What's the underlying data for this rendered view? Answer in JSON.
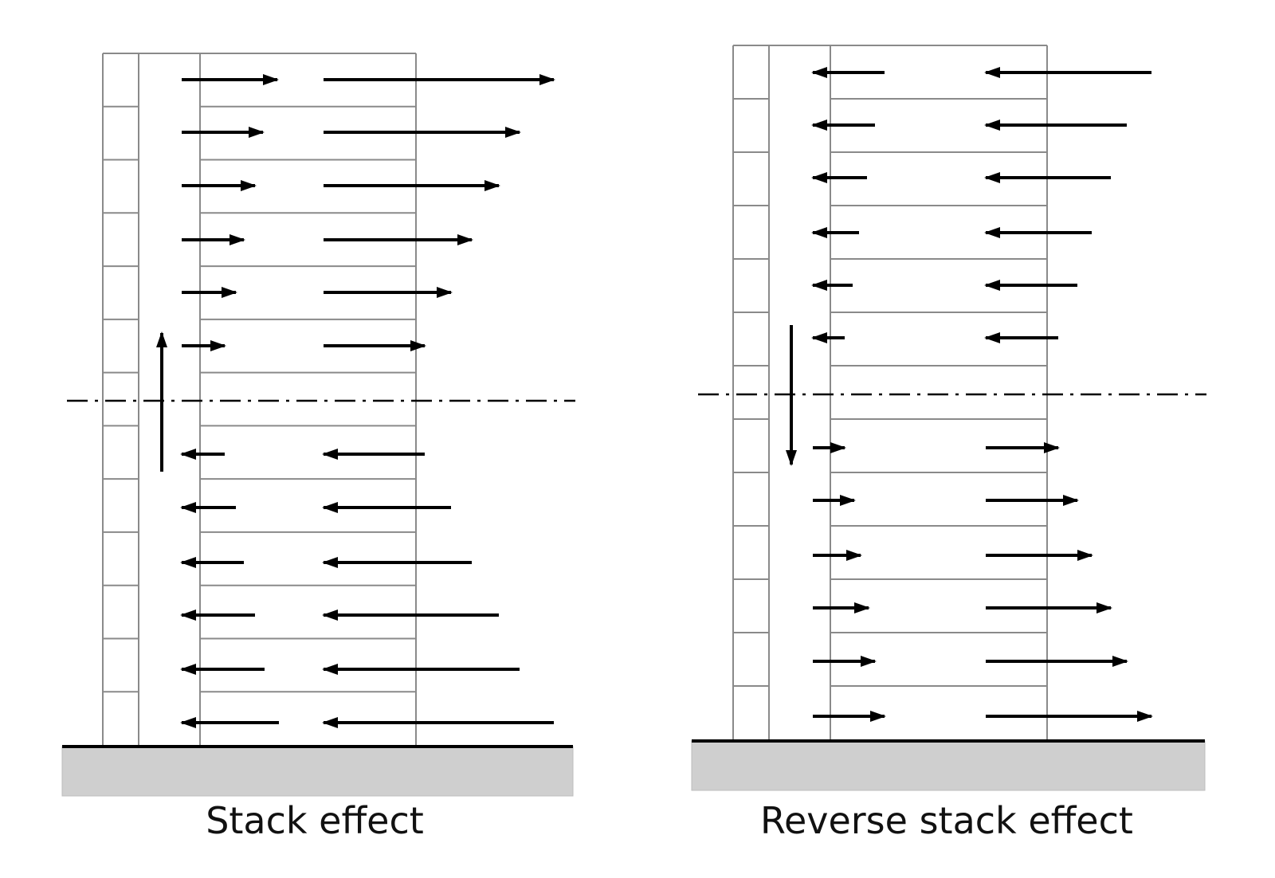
{
  "panels": [
    {
      "caption": "Stack effect",
      "mode": "stack",
      "floors": 13
    },
    {
      "caption": "Reverse stack effect",
      "mode": "reverse",
      "floors": 13
    }
  ],
  "colors": {
    "building_line": "#8a8a8a",
    "arrow": "#000000",
    "ground_fill": "#cfcfcf",
    "ground_line": "#000000",
    "neutral_line": "#000000"
  }
}
